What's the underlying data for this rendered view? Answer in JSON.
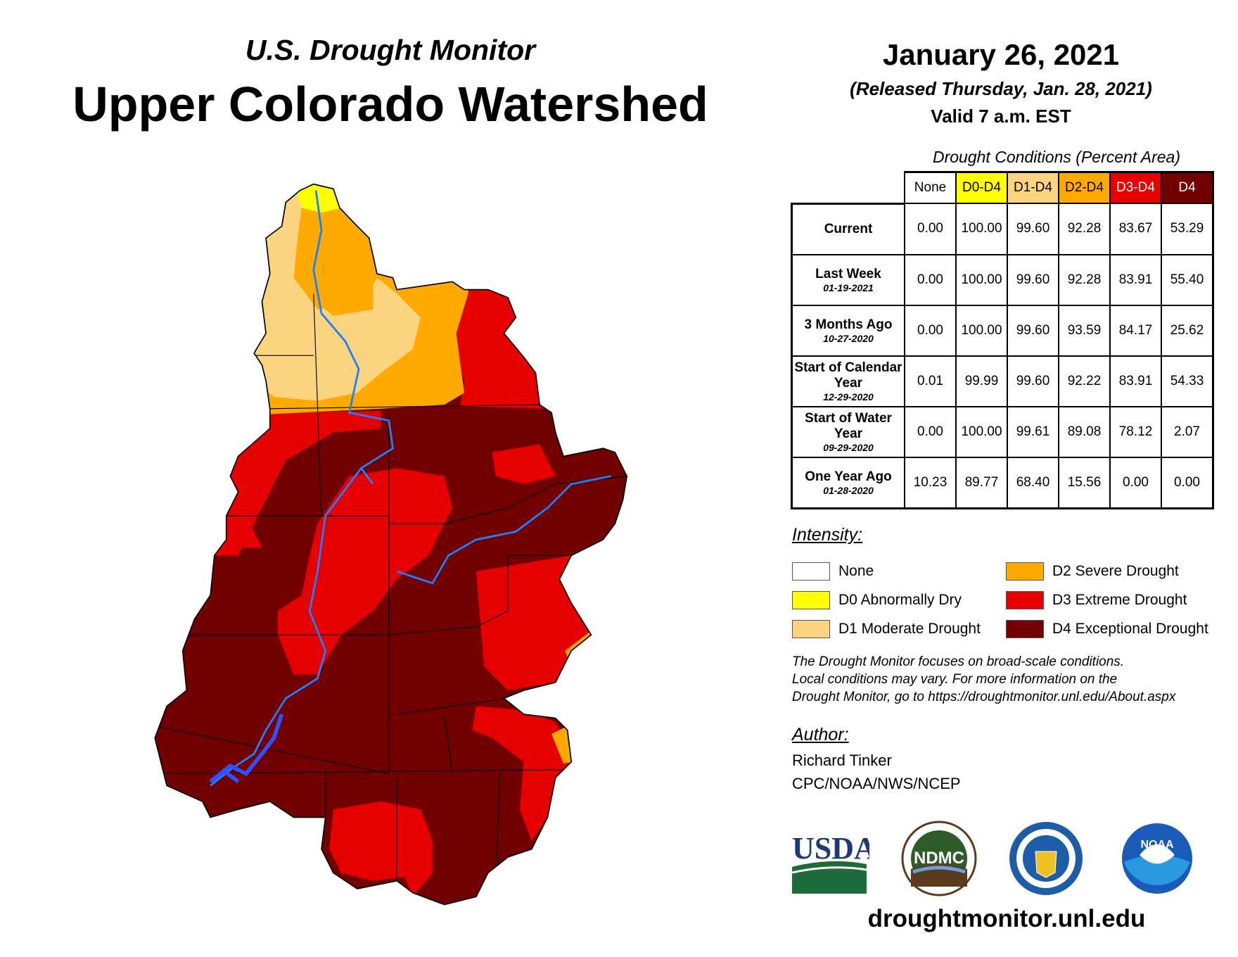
{
  "header": {
    "subtitle": "U.S. Drought Monitor",
    "title": "Upper Colorado Watershed",
    "date": "January 26, 2021",
    "released": "(Released Thursday, Jan. 28, 2021)",
    "valid": "Valid 7 a.m. EST"
  },
  "table": {
    "caption": "Drought Conditions (Percent Area)",
    "columns": [
      {
        "label": "None",
        "color": "#ffffff",
        "text": "#000000"
      },
      {
        "label": "D0-D4",
        "color": "#ffff00",
        "text": "#000000"
      },
      {
        "label": "D1-D4",
        "color": "#fcd37f",
        "text": "#000000"
      },
      {
        "label": "D2-D4",
        "color": "#ffaa00",
        "text": "#000000"
      },
      {
        "label": "D3-D4",
        "color": "#e60000",
        "text": "#ffffff"
      },
      {
        "label": "D4",
        "color": "#730000",
        "text": "#ffffff"
      }
    ],
    "rows": [
      {
        "label": "Current",
        "date": "",
        "values": [
          "0.00",
          "100.00",
          "99.60",
          "92.28",
          "83.67",
          "53.29"
        ]
      },
      {
        "label": "Last Week",
        "date": "01-19-2021",
        "values": [
          "0.00",
          "100.00",
          "99.60",
          "92.28",
          "83.91",
          "55.40"
        ]
      },
      {
        "label": "3 Months Ago",
        "date": "10-27-2020",
        "values": [
          "0.00",
          "100.00",
          "99.60",
          "93.59",
          "84.17",
          "25.62"
        ]
      },
      {
        "label": "Start of Calendar Year",
        "date": "12-29-2020",
        "values": [
          "0.01",
          "99.99",
          "99.60",
          "92.22",
          "83.91",
          "54.33"
        ]
      },
      {
        "label": "Start of Water Year",
        "date": "09-29-2020",
        "values": [
          "0.00",
          "100.00",
          "99.61",
          "89.08",
          "78.12",
          "2.07"
        ]
      },
      {
        "label": "One Year Ago",
        "date": "01-28-2020",
        "values": [
          "10.23",
          "89.77",
          "68.40",
          "15.56",
          "0.00",
          "0.00"
        ]
      }
    ]
  },
  "legend": {
    "title": "Intensity:",
    "items": [
      {
        "label": "None",
        "color": "#ffffff"
      },
      {
        "label": "D0 Abnormally Dry",
        "color": "#ffff00"
      },
      {
        "label": "D1 Moderate Drought",
        "color": "#fcd37f"
      },
      {
        "label": "D2 Severe Drought",
        "color": "#ffaa00"
      },
      {
        "label": "D3 Extreme Drought",
        "color": "#e60000"
      },
      {
        "label": "D4 Exceptional Drought",
        "color": "#730000"
      }
    ]
  },
  "disclaimer": [
    "The Drought Monitor focuses on broad-scale conditions.",
    "Local conditions may vary. For more information on the",
    "Drought Monitor, go to https://droughtmonitor.unl.edu/About.aspx"
  ],
  "author": {
    "title": "Author:",
    "name": "Richard Tinker",
    "org": "CPC/NOAA/NWS/NCEP"
  },
  "logos": [
    "USDA",
    "NDMC",
    "U.S. Department of Commerce",
    "NOAA"
  ],
  "url": "droughtmonitor.unl.edu",
  "map": {
    "river_color": "#1e7fff"
  }
}
